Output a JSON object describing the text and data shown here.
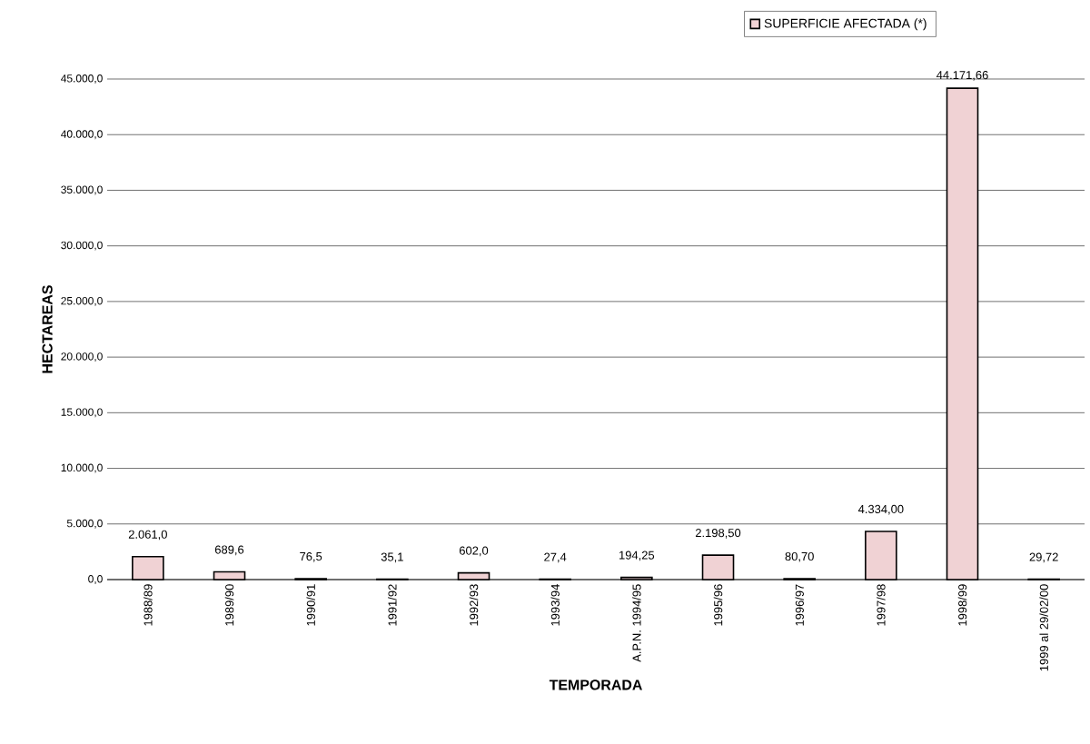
{
  "chart_data": {
    "type": "bar",
    "xlabel": "TEMPORADA",
    "ylabel": "HECTAREAS",
    "categories": [
      "1988/89",
      "1989/90",
      "1990/91",
      "1991/92",
      "1992/93",
      "1993/94",
      "A.P.N. 1994/95",
      "1995/96",
      "1996/97",
      "1997/98",
      "1998/99",
      "1999 al 29/02/00"
    ],
    "series": [
      {
        "name": "SUPERFICIE AFECTADA (*)",
        "color": "#f0d2d4",
        "values": [
          2061.0,
          689.6,
          76.5,
          35.1,
          602.0,
          27.4,
          194.25,
          2198.5,
          80.7,
          4334.0,
          44171.66,
          29.72
        ],
        "value_labels": [
          "2.061,0",
          "689,6",
          "76,5",
          "35,1",
          "602,0",
          "27,4",
          "194,25",
          "2.198,50",
          "80,70",
          "4.334,00",
          "44.171,66",
          "29,72"
        ]
      }
    ],
    "ylim": [
      0,
      45000
    ],
    "yticks": [
      {
        "value": 0,
        "label": "0,0"
      },
      {
        "value": 5000,
        "label": "5.000,0"
      },
      {
        "value": 10000,
        "label": "10.000,0"
      },
      {
        "value": 15000,
        "label": "15.000,0"
      },
      {
        "value": 20000,
        "label": "20.000,0"
      },
      {
        "value": 25000,
        "label": "25.000,0"
      },
      {
        "value": 30000,
        "label": "30.000,0"
      },
      {
        "value": 35000,
        "label": "35.000,0"
      },
      {
        "value": 40000,
        "label": "40.000,0"
      },
      {
        "value": 45000,
        "label": "45.000,0"
      }
    ],
    "grid": "y",
    "legend": "top right"
  }
}
